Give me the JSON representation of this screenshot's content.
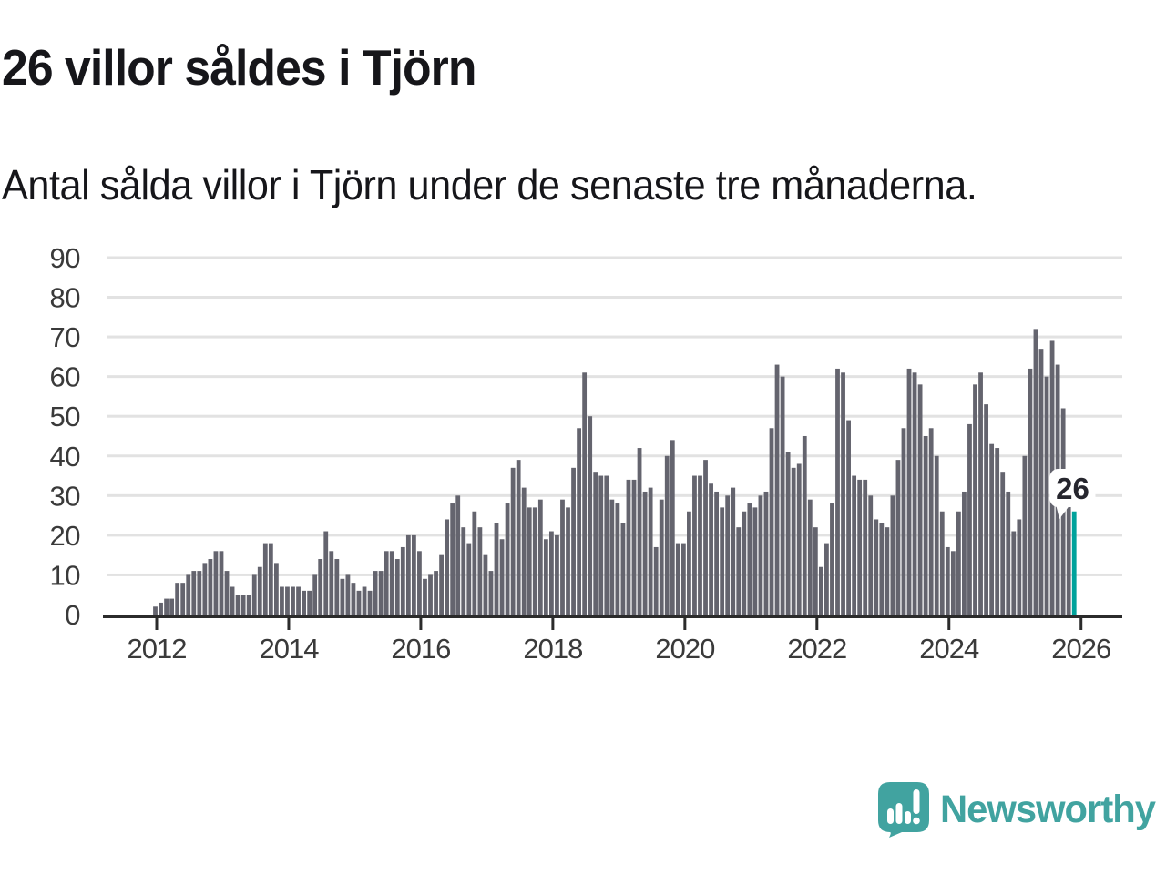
{
  "header": {
    "title": "26 villor såldes i Tjörn",
    "subtitle": "Antal sålda villor i Tjörn under de senaste tre månaderna."
  },
  "chart_data": {
    "type": "bar",
    "title": "26 villor såldes i Tjörn",
    "subtitle": "Antal sålda villor i Tjörn under de senaste tre månaderna.",
    "frequency": "monthly",
    "start": "2012-01",
    "end": "2025-12",
    "xlabel": "",
    "ylabel": "",
    "ylim": [
      0,
      90
    ],
    "y_ticks": [
      0,
      10,
      20,
      30,
      40,
      50,
      60,
      70,
      80,
      90
    ],
    "x_ticks": [
      2012,
      2014,
      2016,
      2018,
      2020,
      2022,
      2024,
      2026
    ],
    "grid": "horizontal",
    "legend": "none",
    "bar_color": "#64646e",
    "highlight_color": "#00a29b",
    "grid_color": "#e2e2e2",
    "axis_color": "#2b2b2b",
    "tick_label_color": "#3a3a3a",
    "highlight_last_bar": true,
    "annotation": {
      "text": "26",
      "applies_to": "last-bar"
    },
    "values": [
      2,
      3,
      4,
      4,
      8,
      8,
      10,
      11,
      11,
      13,
      14,
      16,
      16,
      11,
      7,
      5,
      5,
      5,
      10,
      12,
      18,
      18,
      13,
      7,
      7,
      7,
      7,
      6,
      6,
      10,
      14,
      21,
      16,
      14,
      9,
      10,
      8,
      6,
      7,
      6,
      11,
      11,
      16,
      16,
      14,
      17,
      20,
      20,
      16,
      9,
      10,
      11,
      15,
      24,
      28,
      30,
      22,
      18,
      26,
      22,
      15,
      11,
      23,
      19,
      28,
      37,
      39,
      32,
      27,
      27,
      29,
      19,
      21,
      20,
      29,
      27,
      37,
      47,
      61,
      50,
      36,
      35,
      35,
      29,
      28,
      23,
      34,
      34,
      42,
      31,
      32,
      17,
      29,
      40,
      44,
      18,
      18,
      26,
      35,
      35,
      39,
      33,
      31,
      27,
      30,
      32,
      22,
      26,
      28,
      27,
      30,
      31,
      47,
      63,
      60,
      41,
      37,
      38,
      45,
      29,
      22,
      12,
      18,
      28,
      62,
      61,
      49,
      35,
      34,
      34,
      30,
      24,
      23,
      22,
      30,
      39,
      47,
      62,
      61,
      58,
      45,
      47,
      40,
      26,
      17,
      16,
      26,
      31,
      48,
      58,
      61,
      53,
      43,
      42,
      36,
      31,
      21,
      24,
      40,
      62,
      72,
      67,
      60,
      69,
      63,
      52,
      28,
      26
    ]
  },
  "footer": {
    "logo_text": "Newsworthy",
    "logo_color": "#41a3a0"
  }
}
